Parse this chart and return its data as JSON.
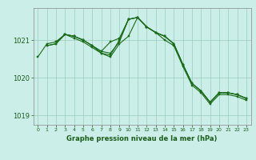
{
  "bg_color": "#cceee8",
  "grid_color": "#99ccbb",
  "line_color": "#1a6b1a",
  "marker_color": "#1a6b1a",
  "xlabel": "Graphe pression niveau de la mer (hPa)",
  "xlabel_color": "#1a5c1a",
  "tick_color": "#1a5c1a",
  "ylabel_ticks": [
    1019,
    1020,
    1021
  ],
  "xlim": [
    -0.5,
    23.5
  ],
  "ylim": [
    1018.75,
    1021.85
  ],
  "lines": [
    {
      "x": [
        0,
        1,
        2,
        3,
        4,
        5,
        6,
        7,
        8,
        9,
        10,
        11,
        12,
        13,
        14,
        15,
        16,
        17,
        18,
        19,
        20,
        21,
        22,
        23
      ],
      "y": [
        1020.55,
        1020.9,
        1020.95,
        1021.15,
        1021.1,
        1021.0,
        1020.85,
        1020.7,
        1020.95,
        1021.05,
        1021.55,
        1021.6,
        1021.35,
        1021.2,
        1021.1,
        1020.9,
        1020.35,
        1019.85,
        1019.65,
        1019.35,
        1019.6,
        1019.6,
        1019.55,
        1019.45
      ]
    },
    {
      "x": [
        1,
        2,
        3,
        4,
        5,
        6,
        7,
        8,
        9,
        10,
        11,
        12,
        13,
        14,
        15,
        16,
        17,
        18,
        19,
        20,
        21,
        22,
        23
      ],
      "y": [
        1020.85,
        1020.9,
        1021.15,
        1021.1,
        1021.0,
        1020.85,
        1020.7,
        1020.65,
        1020.95,
        1021.55,
        1021.6,
        1021.35,
        1021.2,
        1021.1,
        1020.9,
        1020.35,
        1019.85,
        1019.65,
        1019.35,
        1019.6,
        1019.6,
        1019.55,
        1019.45
      ]
    },
    {
      "x": [
        2,
        3,
        4,
        5,
        6,
        7,
        8,
        9,
        10,
        11,
        12,
        13,
        14,
        15,
        16,
        17,
        18,
        19,
        20,
        21,
        22,
        23
      ],
      "y": [
        1020.95,
        1021.15,
        1021.1,
        1021.0,
        1020.85,
        1020.65,
        1020.6,
        1021.0,
        1021.55,
        1021.6,
        1021.35,
        1021.2,
        1021.1,
        1020.9,
        1020.35,
        1019.85,
        1019.65,
        1019.35,
        1019.6,
        1019.6,
        1019.55,
        1019.45
      ]
    },
    {
      "x": [
        1,
        2,
        3,
        4,
        5,
        6,
        7,
        8,
        9,
        10,
        11,
        12,
        13,
        14,
        15,
        16,
        17,
        18,
        19,
        20,
        21,
        22,
        23
      ],
      "y": [
        1020.85,
        1020.9,
        1021.15,
        1021.05,
        1020.95,
        1020.8,
        1020.65,
        1020.55,
        1020.9,
        1021.1,
        1021.6,
        1021.35,
        1021.2,
        1021.0,
        1020.85,
        1020.3,
        1019.8,
        1019.6,
        1019.3,
        1019.55,
        1019.55,
        1019.5,
        1019.4
      ]
    }
  ],
  "xticks": [
    0,
    1,
    2,
    3,
    4,
    5,
    6,
    7,
    8,
    9,
    10,
    11,
    12,
    13,
    14,
    15,
    16,
    17,
    18,
    19,
    20,
    21,
    22,
    23
  ]
}
